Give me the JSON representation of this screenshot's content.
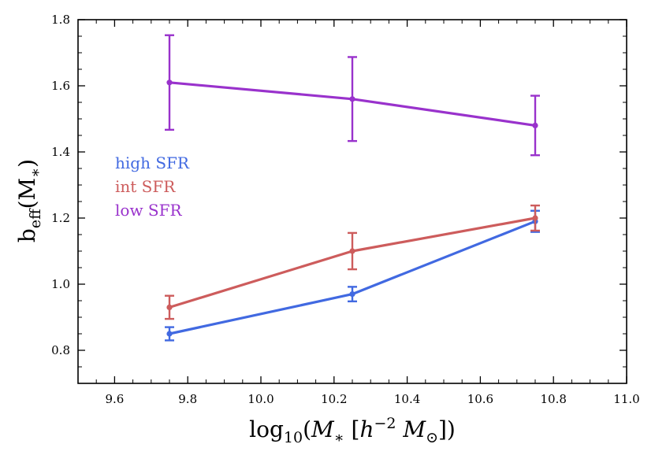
{
  "chart_data": {
    "type": "line",
    "title": "",
    "xlabel": "log10(M* [h^-2 M⊙])",
    "ylabel": "beff(M*)",
    "xlim": [
      9.5,
      11.0
    ],
    "ylim": [
      0.7,
      1.8
    ],
    "x_ticks": [
      9.6,
      9.8,
      10.0,
      10.2,
      10.4,
      10.6,
      10.8,
      11.0
    ],
    "x_tick_labels": [
      "9.6",
      "9.8",
      "10.0",
      "10.2",
      "10.4",
      "10.6",
      "10.8",
      "11.0"
    ],
    "y_ticks": [
      0.8,
      1.0,
      1.2,
      1.4,
      1.6,
      1.8
    ],
    "y_tick_labels": [
      "0.8",
      "1.0",
      "1.2",
      "1.4",
      "1.6",
      "1.8"
    ],
    "x": [
      9.75,
      10.25,
      10.75
    ],
    "series": [
      {
        "name": "high SFR",
        "color": "#4169e1",
        "values": [
          0.85,
          0.97,
          1.19
        ],
        "errors": [
          0.02,
          0.022,
          0.032
        ]
      },
      {
        "name": "int SFR",
        "color": "#cd5c5c",
        "values": [
          0.93,
          1.1,
          1.2
        ],
        "errors": [
          0.035,
          0.055,
          0.038
        ]
      },
      {
        "name": "low SFR",
        "color": "#9932cc",
        "values": [
          1.61,
          1.56,
          1.48
        ],
        "errors": [
          0.143,
          0.127,
          0.09
        ]
      }
    ],
    "legend_position": "left"
  }
}
